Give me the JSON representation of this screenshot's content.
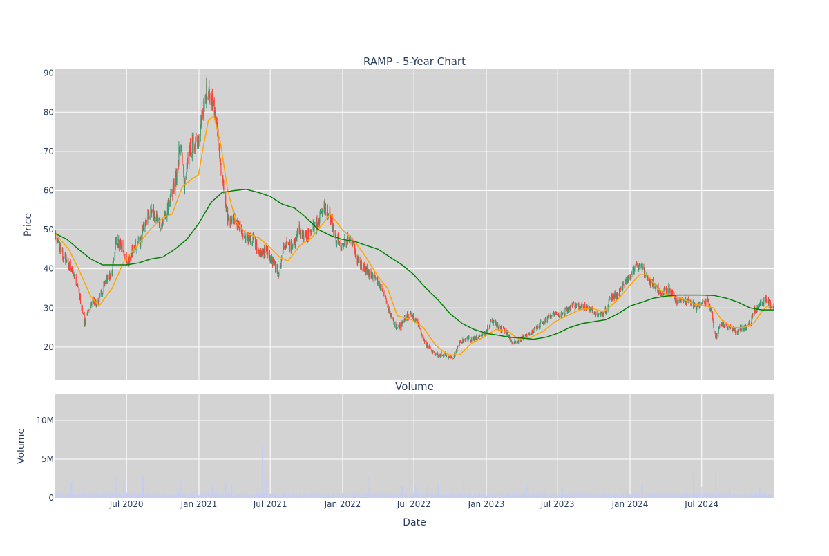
{
  "chart_data": [
    {
      "type": "candlestick",
      "title": "RAMP - 5-Year Chart",
      "xlabel": "",
      "ylabel": "Price",
      "ylim": [
        11.5,
        91
      ],
      "xlim": [
        "2020-01-02",
        "2024-12-31"
      ],
      "y_ticks": [
        20,
        30,
        40,
        50,
        60,
        70,
        80,
        90
      ],
      "grid": true,
      "legend": "none",
      "background": "#d3d3d3",
      "colors": {
        "up": "#3d9970",
        "down": "#ff4136",
        "ma_short": "#ffa500",
        "ma_long": "#008000"
      },
      "price_path": [
        [
          "2020-01-02",
          48.5
        ],
        [
          "2020-01-20",
          44
        ],
        [
          "2020-02-10",
          40
        ],
        [
          "2020-02-28",
          36
        ],
        [
          "2020-03-16",
          26
        ],
        [
          "2020-03-25",
          29
        ],
        [
          "2020-04-06",
          32
        ],
        [
          "2020-04-20",
          31
        ],
        [
          "2020-05-08",
          37
        ],
        [
          "2020-05-25",
          39
        ],
        [
          "2020-06-05",
          48
        ],
        [
          "2020-06-20",
          45
        ],
        [
          "2020-07-06",
          42
        ],
        [
          "2020-07-20",
          46
        ],
        [
          "2020-08-05",
          47
        ],
        [
          "2020-08-20",
          53
        ],
        [
          "2020-09-05",
          55
        ],
        [
          "2020-09-20",
          51
        ],
        [
          "2020-10-05",
          53
        ],
        [
          "2020-10-20",
          58
        ],
        [
          "2020-11-05",
          64
        ],
        [
          "2020-11-15",
          73
        ],
        [
          "2020-11-25",
          60
        ],
        [
          "2020-12-05",
          70
        ],
        [
          "2020-12-20",
          72
        ],
        [
          "2020-12-31",
          73
        ],
        [
          "2021-01-10",
          80
        ],
        [
          "2021-01-22",
          86
        ],
        [
          "2021-02-01",
          84
        ],
        [
          "2021-02-10",
          80
        ],
        [
          "2021-02-22",
          70
        ],
        [
          "2021-03-05",
          60
        ],
        [
          "2021-03-15",
          52
        ],
        [
          "2021-03-31",
          53
        ],
        [
          "2021-04-15",
          50
        ],
        [
          "2021-05-01",
          48
        ],
        [
          "2021-05-20",
          47
        ],
        [
          "2021-06-08",
          43
        ],
        [
          "2021-06-20",
          45
        ],
        [
          "2021-07-05",
          42
        ],
        [
          "2021-07-22",
          39
        ],
        [
          "2021-08-08",
          47
        ],
        [
          "2021-08-25",
          45
        ],
        [
          "2021-09-10",
          50
        ],
        [
          "2021-09-28",
          48
        ],
        [
          "2021-10-15",
          50
        ],
        [
          "2021-11-01",
          52
        ],
        [
          "2021-11-15",
          56
        ],
        [
          "2021-12-01",
          53
        ],
        [
          "2021-12-15",
          48
        ],
        [
          "2022-01-01",
          46
        ],
        [
          "2022-01-20",
          48
        ],
        [
          "2022-02-05",
          43
        ],
        [
          "2022-02-25",
          40
        ],
        [
          "2022-03-15",
          38
        ],
        [
          "2022-04-01",
          37
        ],
        [
          "2022-04-20",
          32
        ],
        [
          "2022-05-10",
          26
        ],
        [
          "2022-05-25",
          25
        ],
        [
          "2022-06-10",
          28
        ],
        [
          "2022-06-25",
          28
        ],
        [
          "2022-07-12",
          26
        ],
        [
          "2022-07-30",
          21
        ],
        [
          "2022-08-15",
          19
        ],
        [
          "2022-09-01",
          18
        ],
        [
          "2022-09-20",
          18
        ],
        [
          "2022-10-08",
          17
        ],
        [
          "2022-10-25",
          21
        ],
        [
          "2022-11-10",
          22
        ],
        [
          "2022-11-28",
          22
        ],
        [
          "2022-12-15",
          23
        ],
        [
          "2022-12-31",
          24
        ],
        [
          "2023-01-15",
          27
        ],
        [
          "2023-02-01",
          25
        ],
        [
          "2023-02-20",
          24
        ],
        [
          "2023-03-10",
          21
        ],
        [
          "2023-03-28",
          22
        ],
        [
          "2023-04-15",
          23
        ],
        [
          "2023-05-01",
          24
        ],
        [
          "2023-05-20",
          26
        ],
        [
          "2023-06-10",
          28
        ],
        [
          "2023-06-30",
          28
        ],
        [
          "2023-07-20",
          29
        ],
        [
          "2023-08-10",
          31
        ],
        [
          "2023-08-31",
          30
        ],
        [
          "2023-09-20",
          30
        ],
        [
          "2023-10-10",
          28
        ],
        [
          "2023-10-31",
          29
        ],
        [
          "2023-11-15",
          33
        ],
        [
          "2023-11-30",
          33
        ],
        [
          "2023-12-15",
          36
        ],
        [
          "2024-01-01",
          38
        ],
        [
          "2024-01-15",
          41
        ],
        [
          "2024-01-31",
          40
        ],
        [
          "2024-02-15",
          37
        ],
        [
          "2024-03-01",
          36
        ],
        [
          "2024-03-20",
          34
        ],
        [
          "2024-04-10",
          35
        ],
        [
          "2024-04-28",
          32
        ],
        [
          "2024-05-15",
          32
        ],
        [
          "2024-05-30",
          32
        ],
        [
          "2024-06-15",
          30
        ],
        [
          "2024-07-01",
          31
        ],
        [
          "2024-07-20",
          32
        ],
        [
          "2024-08-05",
          22
        ],
        [
          "2024-08-20",
          26
        ],
        [
          "2024-09-10",
          25
        ],
        [
          "2024-09-25",
          24
        ],
        [
          "2024-10-15",
          25
        ],
        [
          "2024-11-01",
          26
        ],
        [
          "2024-11-10",
          29
        ],
        [
          "2024-11-25",
          31
        ],
        [
          "2024-12-10",
          32
        ],
        [
          "2024-12-31",
          30
        ]
      ],
      "series": [
        {
          "values": [
            [
              "2020-01-02",
              49
            ],
            [
              "2020-02-05",
              45
            ],
            [
              "2020-03-01",
              40
            ],
            [
              "2020-04-01",
              33
            ],
            [
              "2020-04-22",
              30.5
            ],
            [
              "2020-05-25",
              35
            ],
            [
              "2020-06-25",
              42
            ],
            [
              "2020-07-25",
              45.5
            ],
            [
              "2020-08-30",
              50
            ],
            [
              "2020-09-30",
              53
            ],
            [
              "2020-10-25",
              54
            ],
            [
              "2020-11-20",
              61
            ],
            [
              "2020-12-15",
              63
            ],
            [
              "2020-12-31",
              64
            ],
            [
              "2021-01-10",
              70
            ],
            [
              "2021-01-25",
              78
            ],
            [
              "2021-02-08",
              79
            ],
            [
              "2021-02-25",
              72
            ],
            [
              "2021-03-15",
              60
            ],
            [
              "2021-04-05",
              52
            ],
            [
              "2021-05-01",
              49
            ],
            [
              "2021-06-01",
              48
            ],
            [
              "2021-06-25",
              46
            ],
            [
              "2021-07-25",
              43
            ],
            [
              "2021-08-15",
              42
            ],
            [
              "2021-09-15",
              46
            ],
            [
              "2021-10-15",
              48
            ],
            [
              "2021-11-15",
              52
            ],
            [
              "2021-12-01",
              54
            ],
            [
              "2021-12-31",
              50
            ],
            [
              "2022-02-01",
              47
            ],
            [
              "2022-03-01",
              43
            ],
            [
              "2022-04-01",
              38
            ],
            [
              "2022-04-25",
              35
            ],
            [
              "2022-05-20",
              28
            ],
            [
              "2022-06-25",
              27
            ],
            [
              "2022-07-25",
              25
            ],
            [
              "2022-08-25",
              20.5
            ],
            [
              "2022-09-25",
              18
            ],
            [
              "2022-10-25",
              18
            ],
            [
              "2022-11-25",
              21
            ],
            [
              "2022-12-25",
              22.5
            ],
            [
              "2023-01-25",
              24.5
            ],
            [
              "2023-02-25",
              24
            ],
            [
              "2023-03-25",
              22
            ],
            [
              "2023-04-25",
              22.5
            ],
            [
              "2023-05-25",
              24
            ],
            [
              "2023-06-25",
              26.5
            ],
            [
              "2023-07-25",
              28
            ],
            [
              "2023-08-25",
              29.5
            ],
            [
              "2023-09-25",
              30
            ],
            [
              "2023-10-25",
              29
            ],
            [
              "2023-11-25",
              31.5
            ],
            [
              "2023-12-25",
              35
            ],
            [
              "2024-01-25",
              38.5
            ],
            [
              "2024-02-15",
              38.5
            ],
            [
              "2024-03-10",
              35
            ],
            [
              "2024-04-10",
              33
            ],
            [
              "2024-05-10",
              32.5
            ],
            [
              "2024-06-10",
              31
            ],
            [
              "2024-07-10",
              30.5
            ],
            [
              "2024-07-31",
              30
            ],
            [
              "2024-08-20",
              27
            ],
            [
              "2024-09-15",
              25
            ],
            [
              "2024-10-15",
              25
            ],
            [
              "2024-11-10",
              26
            ],
            [
              "2024-11-30",
              29
            ],
            [
              "2024-12-15",
              30.5
            ],
            [
              "2024-12-31",
              30.5
            ]
          ]
        },
        {
          "values": [
            [
              "2020-01-02",
              49
            ],
            [
              "2020-02-01",
              47.5
            ],
            [
              "2020-03-01",
              45
            ],
            [
              "2020-04-01",
              42.5
            ],
            [
              "2020-05-01",
              41
            ],
            [
              "2020-06-01",
              41
            ],
            [
              "2020-07-01",
              41
            ],
            [
              "2020-08-01",
              41.5
            ],
            [
              "2020-09-01",
              42.5
            ],
            [
              "2020-10-01",
              43
            ],
            [
              "2020-11-01",
              45
            ],
            [
              "2020-12-01",
              47.5
            ],
            [
              "2020-12-31",
              51.5
            ],
            [
              "2021-02-01",
              57
            ],
            [
              "2021-03-01",
              59.5
            ],
            [
              "2021-04-01",
              60
            ],
            [
              "2021-05-01",
              60.3
            ],
            [
              "2021-06-01",
              59.5
            ],
            [
              "2021-07-01",
              58.5
            ],
            [
              "2021-08-01",
              56.5
            ],
            [
              "2021-09-01",
              55.5
            ],
            [
              "2021-10-01",
              53
            ],
            [
              "2021-11-01",
              50
            ],
            [
              "2021-12-01",
              48.5
            ],
            [
              "2022-01-01",
              47.5
            ],
            [
              "2022-02-01",
              47
            ],
            [
              "2022-03-01",
              46
            ],
            [
              "2022-04-01",
              45
            ],
            [
              "2022-05-01",
              43
            ],
            [
              "2022-06-01",
              41
            ],
            [
              "2022-07-01",
              38.5
            ],
            [
              "2022-08-01",
              35
            ],
            [
              "2022-09-01",
              32
            ],
            [
              "2022-10-01",
              28.5
            ],
            [
              "2022-11-01",
              26
            ],
            [
              "2022-12-01",
              24.5
            ],
            [
              "2023-01-01",
              23.5
            ],
            [
              "2023-02-01",
              23
            ],
            [
              "2023-03-01",
              22.5
            ],
            [
              "2023-04-01",
              22.3
            ],
            [
              "2023-05-01",
              22
            ],
            [
              "2023-06-01",
              22.5
            ],
            [
              "2023-07-01",
              23.5
            ],
            [
              "2023-08-01",
              25
            ],
            [
              "2023-09-01",
              26
            ],
            [
              "2023-10-01",
              26.5
            ],
            [
              "2023-11-01",
              27
            ],
            [
              "2023-12-01",
              28.5
            ],
            [
              "2024-01-01",
              30.5
            ],
            [
              "2024-02-01",
              31.5
            ],
            [
              "2024-03-01",
              32.5
            ],
            [
              "2024-04-01",
              33
            ],
            [
              "2024-05-01",
              33.3
            ],
            [
              "2024-06-01",
              33.3
            ],
            [
              "2024-07-01",
              33.3
            ],
            [
              "2024-08-01",
              33.2
            ],
            [
              "2024-09-01",
              32.5
            ],
            [
              "2024-10-01",
              31.5
            ],
            [
              "2024-11-01",
              30
            ],
            [
              "2024-12-01",
              29.5
            ],
            [
              "2024-12-31",
              29.5
            ]
          ]
        }
      ]
    },
    {
      "type": "bar",
      "title": "Volume",
      "xlabel": "Date",
      "ylabel": "Volume",
      "ylim": [
        0,
        13400000
      ],
      "y_ticks": [
        0,
        5000000,
        10000000
      ],
      "y_tick_labels": [
        "0",
        "5M",
        "10M"
      ],
      "x_ticks": [
        "2020-07-01",
        "2021-01-01",
        "2021-07-01",
        "2022-01-01",
        "2022-07-01",
        "2023-01-01",
        "2023-07-01",
        "2024-01-01",
        "2024-07-01"
      ],
      "x_tick_labels": [
        "Jul 2020",
        "Jan 2021",
        "Jul 2021",
        "Jan 2022",
        "Jul 2022",
        "Jan 2023",
        "Jul 2023",
        "Jan 2024",
        "Jul 2024"
      ],
      "grid": true,
      "background": "#d3d3d3",
      "bar_color": "#c5cdf2",
      "baseline_volume": 500000,
      "spikes": [
        [
          "2020-02-12",
          2000000
        ],
        [
          "2020-03-15",
          1400000
        ],
        [
          "2020-06-05",
          2700000
        ],
        [
          "2020-06-25",
          2100000
        ],
        [
          "2020-08-12",
          2800000
        ],
        [
          "2020-11-15",
          2500000
        ],
        [
          "2021-02-05",
          2000000
        ],
        [
          "2021-03-10",
          2000000
        ],
        [
          "2021-03-25",
          1800000
        ],
        [
          "2021-06-12",
          7000000
        ],
        [
          "2021-06-22",
          2500000
        ],
        [
          "2021-08-01",
          2900000
        ],
        [
          "2022-03-10",
          2900000
        ],
        [
          "2022-06-01",
          1500000
        ],
        [
          "2022-06-20",
          13000000
        ],
        [
          "2022-07-05",
          1500000
        ],
        [
          "2022-08-05",
          1800000
        ],
        [
          "2022-09-01",
          1900000
        ],
        [
          "2022-11-05",
          2800000
        ],
        [
          "2022-12-25",
          2300000
        ],
        [
          "2023-04-15",
          1800000
        ],
        [
          "2023-06-01",
          1200000
        ],
        [
          "2023-07-15",
          1300000
        ],
        [
          "2023-11-10",
          1500000
        ],
        [
          "2023-12-10",
          1500000
        ],
        [
          "2024-02-01",
          2000000
        ],
        [
          "2024-06-10",
          3000000
        ],
        [
          "2024-06-30",
          1400000
        ],
        [
          "2024-08-05",
          3500000
        ],
        [
          "2024-09-10",
          1200000
        ],
        [
          "2024-11-25",
          1300000
        ]
      ]
    }
  ]
}
